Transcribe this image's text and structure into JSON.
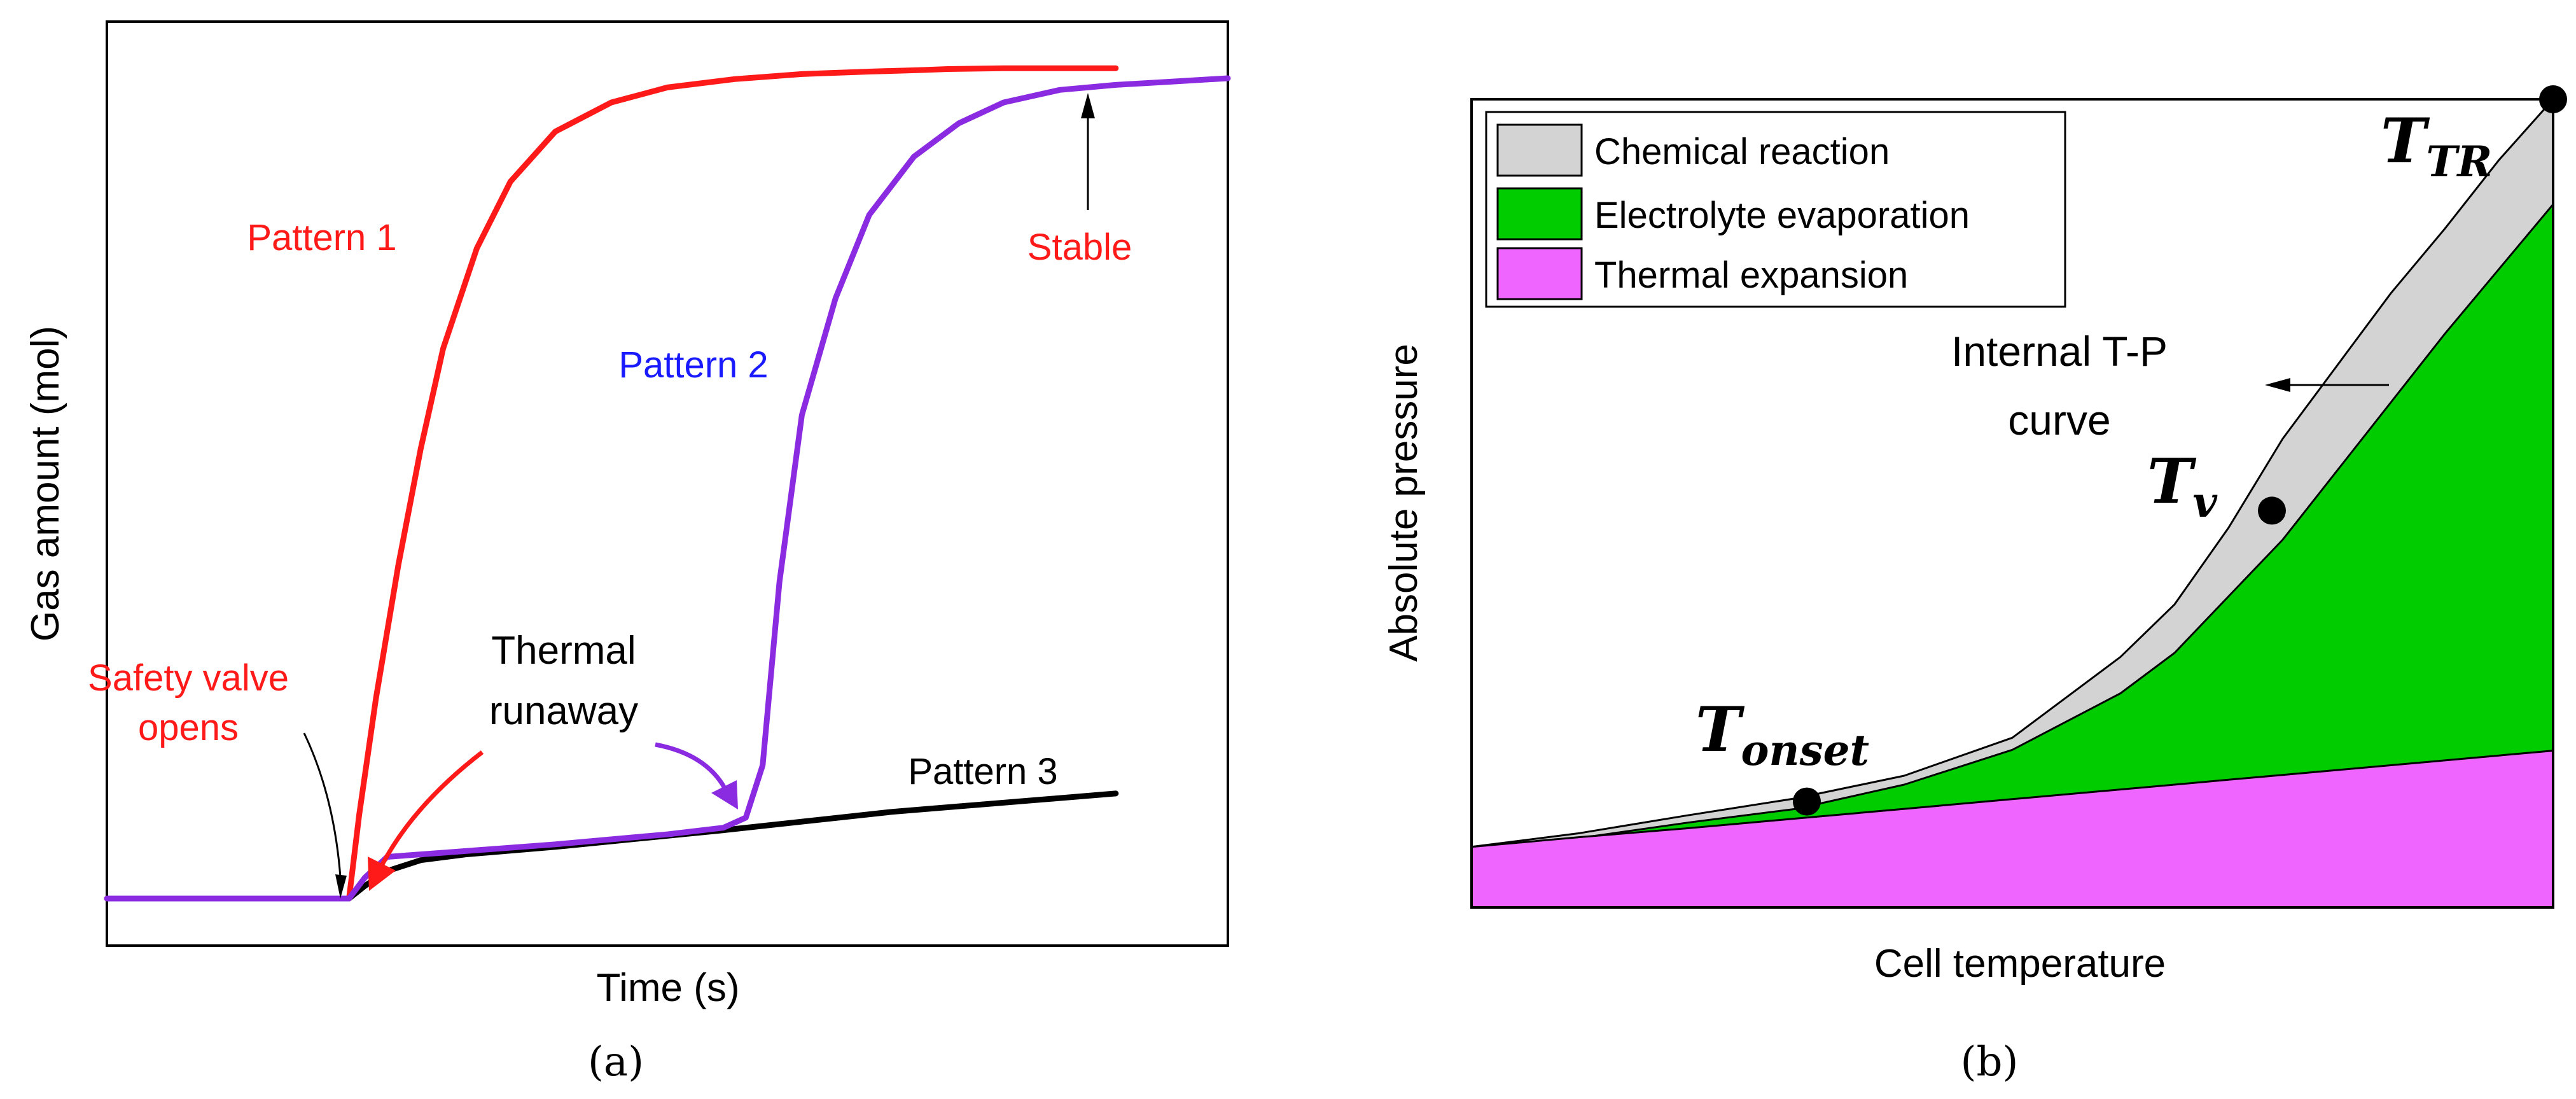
{
  "chart_data": [
    {
      "type": "line",
      "panel_label": "(a)",
      "xlabel": "Time (s)",
      "ylabel": "Gas amount (mol)",
      "ticks": "none",
      "grid": false,
      "xlim": [
        0,
        100
      ],
      "ylim": [
        0,
        100
      ],
      "series": [
        {
          "name": "Pattern 1",
          "color": "#ff1a1a",
          "x": [
            0,
            21.6,
            22.5,
            24,
            26,
            28,
            30,
            33,
            36,
            40,
            45,
            50,
            56,
            62,
            68,
            73,
            75,
            80,
            88,
            90
          ],
          "y": [
            0,
            0,
            10,
            24,
            40,
            54,
            66,
            78,
            86,
            92,
            95.5,
            97.3,
            98.3,
            98.9,
            99.2,
            99.4,
            99.5,
            99.6,
            99.6,
            99.6
          ]
        },
        {
          "name": "Pattern 2",
          "color": "#8a2be2",
          "x": [
            0,
            21.6,
            23,
            25,
            30,
            40,
            50,
            55,
            57,
            58.5,
            60,
            62,
            65,
            68,
            72,
            76,
            80,
            85,
            90,
            95,
            100
          ],
          "y": [
            0,
            0,
            2.5,
            5,
            5.5,
            6.5,
            7.7,
            8.5,
            9.7,
            16,
            38,
            58,
            72,
            82,
            89,
            93,
            95.5,
            97,
            97.6,
            98,
            98.4
          ]
        },
        {
          "name": "Pattern 3",
          "color": "#000000",
          "x": [
            21.6,
            23,
            25,
            28,
            32,
            40,
            55,
            70,
            90
          ],
          "y": [
            0,
            1.5,
            3.3,
            4.6,
            5.3,
            6.2,
            8.2,
            10.4,
            12.6
          ]
        }
      ],
      "annotations": {
        "pattern1": "Pattern 1",
        "pattern2": "Pattern 2",
        "pattern3": "Pattern 3",
        "stable": "Stable",
        "valve_line1": "Safety valve",
        "valve_line2": "opens",
        "runaway_line1": "Thermal",
        "runaway_line2": "runaway"
      }
    },
    {
      "type": "area",
      "panel_label": "(b)",
      "xlabel": "Cell temperature",
      "ylabel": "Absolute pressure",
      "ticks": "none",
      "grid": false,
      "legend_position": "top-left",
      "xlim": [
        0,
        100
      ],
      "ylim": [
        0,
        100
      ],
      "x": [
        0,
        10,
        20,
        30,
        40,
        50,
        60,
        65,
        70,
        75,
        80,
        85,
        90,
        95,
        100
      ],
      "series": [
        {
          "name": "Thermal expansion",
          "color": "#ee66ff",
          "y": [
            7.5,
            8.7,
            9.8,
            11,
            12.2,
            13.4,
            14.6,
            15.2,
            15.8,
            16.4,
            17,
            17.6,
            18.2,
            18.8,
            19.4
          ]
        },
        {
          "name": "Electrolyte evaporation",
          "color": "#00cc00",
          "y": [
            7.5,
            8.6,
            10.5,
            12.2,
            15.2,
            19.5,
            26.5,
            31.5,
            38.5,
            45.5,
            54,
            62.5,
            71,
            79,
            87
          ]
        },
        {
          "name": "Chemical reaction",
          "color": "#d3d3d3",
          "y": [
            7.5,
            9.2,
            11.4,
            13.5,
            16.3,
            21,
            31,
            37.5,
            47,
            58,
            67,
            76,
            84,
            92.5,
            100
          ]
        }
      ],
      "points": [
        {
          "name": "T_onset",
          "x": 31,
          "y": 13.1
        },
        {
          "name": "T_v",
          "x": 74,
          "y": 49.1
        },
        {
          "name": "T_TR",
          "x": 100,
          "y": 100
        }
      ],
      "annotations": {
        "curve_line1": "Internal T-P",
        "curve_line2": "curve",
        "t_onset_main": "T",
        "t_onset_sub": "onset",
        "t_v_main": "T",
        "t_v_sub": "v",
        "t_tr_main": "T",
        "t_tr_sub": "TR"
      }
    }
  ]
}
